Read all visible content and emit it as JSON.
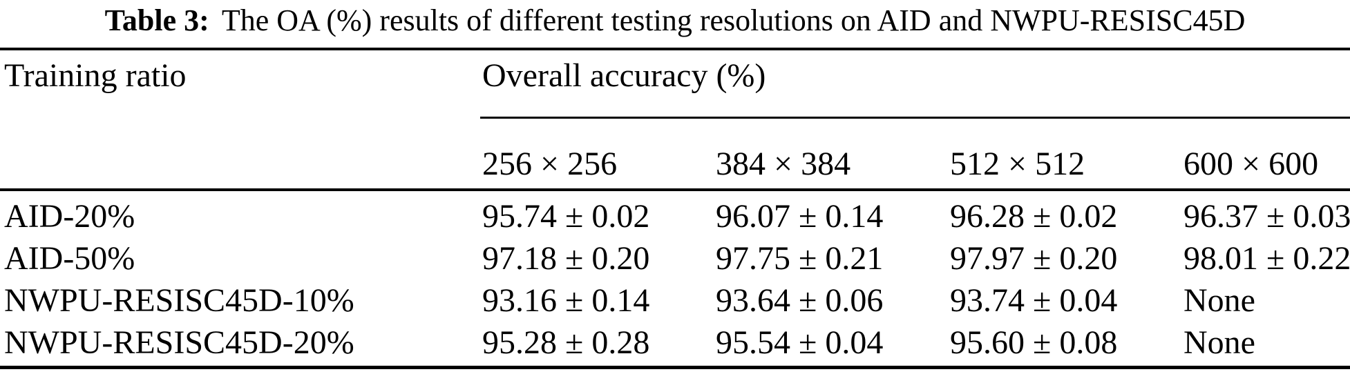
{
  "caption": {
    "label": "Table 3:",
    "text": "The OA (%) results of different testing resolutions on AID and NWPU-RESISC45D"
  },
  "table": {
    "row_header": "Training ratio",
    "group_header": "Overall accuracy (%)",
    "columns": [
      "256 × 256",
      "384 × 384",
      "512 × 512",
      "600 × 600"
    ],
    "rows": [
      {
        "label": "AID-20%",
        "values": [
          "95.74 ± 0.02",
          "96.07 ± 0.14",
          "96.28 ± 0.02",
          "96.37 ± 0.03"
        ]
      },
      {
        "label": "AID-50%",
        "values": [
          "97.18 ± 0.20",
          "97.75 ± 0.21",
          "97.97 ± 0.20",
          "98.01 ± 0.22"
        ]
      },
      {
        "label": "NWPU-RESISC45D-10%",
        "values": [
          "93.16 ± 0.14",
          "93.64 ± 0.06",
          "93.74 ± 0.04",
          "None"
        ]
      },
      {
        "label": "NWPU-RESISC45D-20%",
        "values": [
          "95.28 ± 0.28",
          "95.54 ± 0.04",
          "95.60 ± 0.08",
          "None"
        ]
      }
    ]
  },
  "colors": {
    "text": "#000000",
    "background": "#ffffff",
    "rules": "#000000"
  }
}
